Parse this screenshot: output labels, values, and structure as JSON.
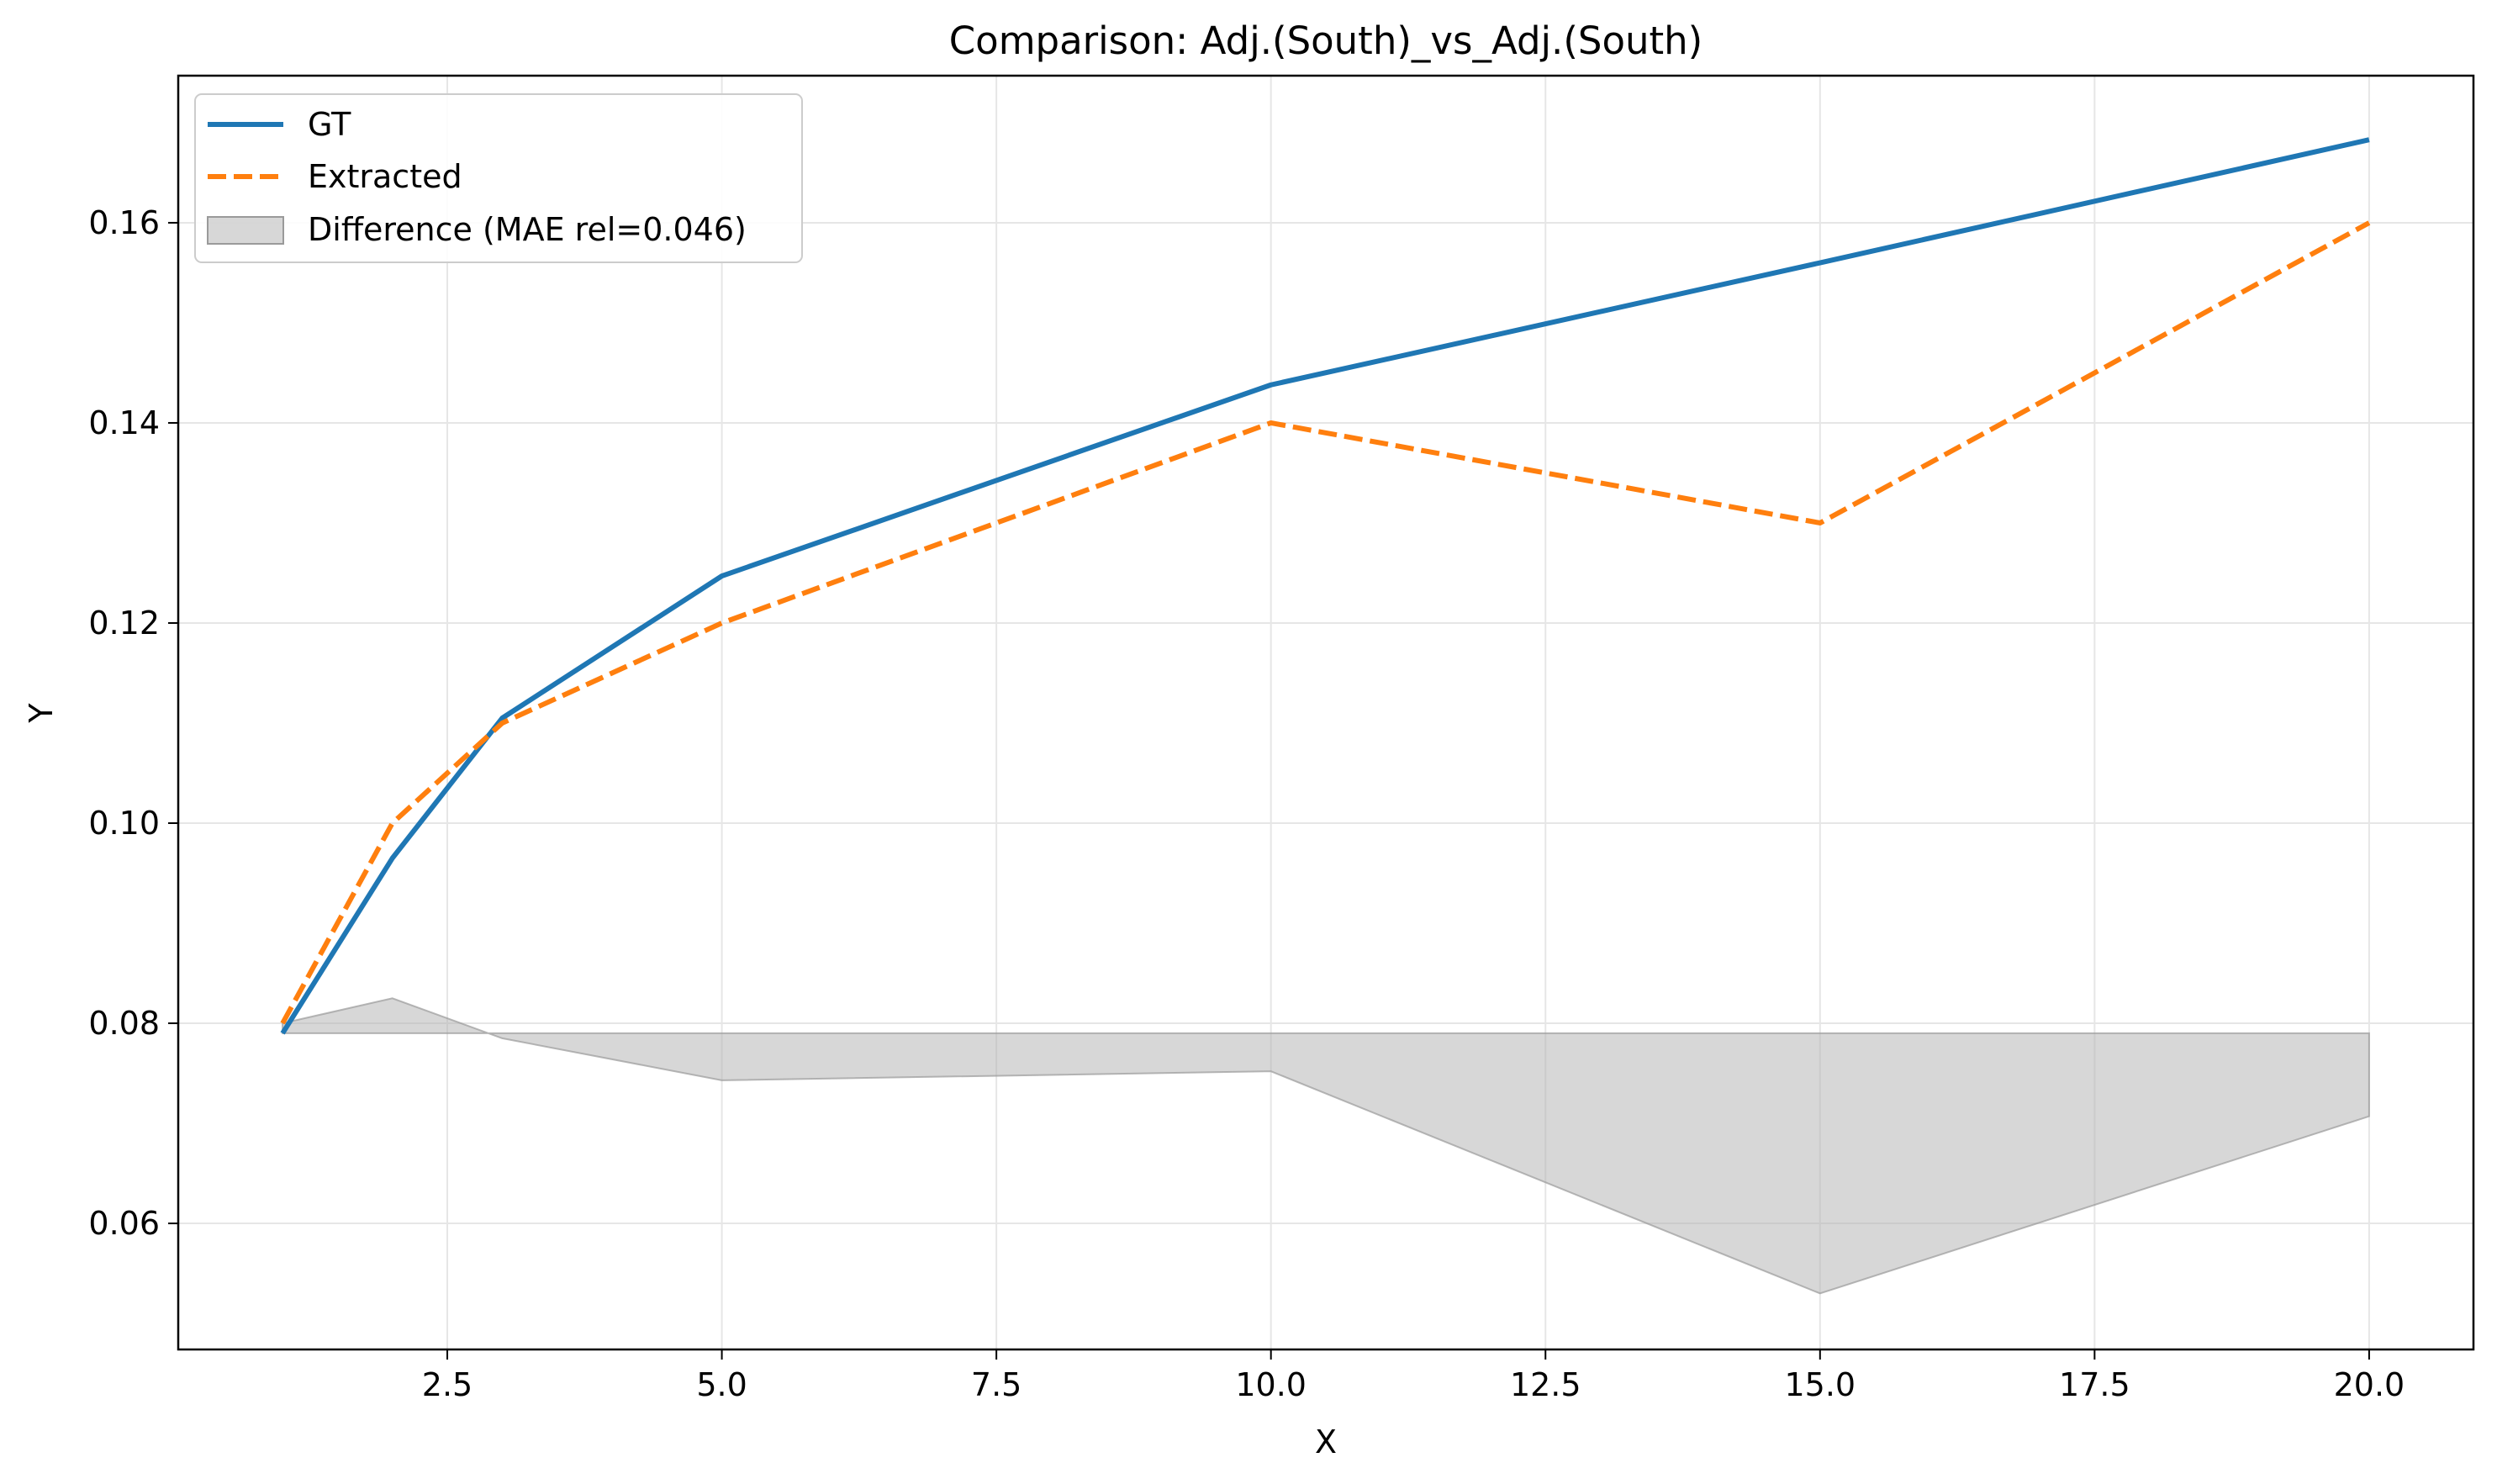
{
  "chart_data": {
    "type": "line",
    "title": "Comparison: Adj.(South)_vs_Adj.(South)",
    "xlabel": "X",
    "ylabel": "Y",
    "xlim": [
      0.05,
      20.95
    ],
    "ylim": [
      0.0474,
      0.1747
    ],
    "xticks": [
      2.5,
      5.0,
      7.5,
      10.0,
      12.5,
      15.0,
      17.5,
      20.0
    ],
    "xtick_labels": [
      "2.5",
      "5.0",
      "7.5",
      "10.0",
      "12.5",
      "15.0",
      "17.5",
      "20.0"
    ],
    "yticks": [
      0.06,
      0.08,
      0.1,
      0.12,
      0.14,
      0.16
    ],
    "ytick_labels": [
      "0.06",
      "0.08",
      "0.10",
      "0.12",
      "0.14",
      "0.16"
    ],
    "grid": true,
    "legend_position": "upper-left",
    "x": [
      1,
      2,
      3,
      5,
      10,
      15,
      20
    ],
    "series": [
      {
        "name": "GT",
        "values": [
          0.079,
          0.0965,
          0.1105,
          0.1247,
          0.1438,
          0.156,
          0.1683
        ],
        "color": "#1f77b4",
        "style": "solid"
      },
      {
        "name": "Extracted",
        "values": [
          0.08,
          0.1,
          0.11,
          0.12,
          0.14,
          0.13,
          0.16
        ],
        "color": "#ff7f0e",
        "style": "dashed"
      }
    ],
    "difference": {
      "name": "Difference (MAE rel=0.046)",
      "baseline": 0.079,
      "values": [
        0.08,
        0.0825,
        0.0785,
        0.0743,
        0.0752,
        0.053,
        0.0707
      ],
      "color": "#b0b0b0"
    }
  }
}
